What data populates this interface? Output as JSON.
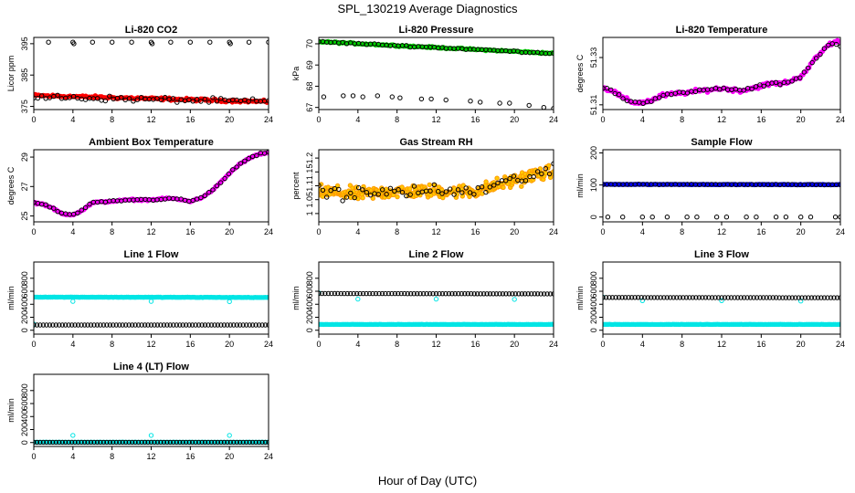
{
  "figure": {
    "title": "SPL_130219  Average Diagnostics",
    "xlabel": "Hour of Day (UTC)"
  },
  "chart_data": [
    {
      "type": "scatter",
      "title": "Li-820 CO2",
      "ylabel": "Licor ppm",
      "xlim": [
        0,
        24
      ],
      "ylim": [
        374,
        397
      ],
      "xticks": [
        0,
        4,
        8,
        12,
        16,
        20,
        24
      ],
      "yticks": [
        375,
        385,
        395
      ],
      "series": [
        {
          "name": "instrument",
          "color": "#ff0000",
          "fill": "#ff0000",
          "generator": "linear",
          "from": 378.5,
          "to": 376.5,
          "noise": 0.6,
          "n": 150
        },
        {
          "name": "line-avg-low",
          "color": "#000000",
          "generator": "linear",
          "from": 378,
          "to": 376.5,
          "noise": 1.2,
          "n": 60
        },
        {
          "name": "line-avg-high",
          "color": "#000000",
          "x": [
            1.5,
            4,
            4.1,
            6,
            8,
            10,
            12,
            12.1,
            14,
            16,
            18,
            20,
            20.1,
            22,
            24
          ],
          "y": [
            395.5,
            395.5,
            395,
            395.5,
            395.5,
            395.5,
            395.5,
            395,
            395.5,
            395.5,
            395.5,
            395.5,
            395,
            395.5,
            395.5
          ]
        }
      ]
    },
    {
      "type": "scatter",
      "title": "Li-820 Pressure",
      "ylabel": "kPa",
      "xlim": [
        0,
        24
      ],
      "ylim": [
        66.9,
        70.3
      ],
      "xticks": [
        0,
        4,
        8,
        12,
        16,
        20,
        24
      ],
      "yticks": [
        67,
        68,
        69,
        70
      ],
      "series": [
        {
          "name": "instrument",
          "color": "#00cc00",
          "fill": "#00cc00",
          "generator": "linear",
          "from": 70.1,
          "to": 69.55,
          "noise": 0.05,
          "n": 150
        },
        {
          "name": "line-avg-high",
          "color": "#000000",
          "generator": "linear",
          "from": 70.1,
          "to": 69.55,
          "noise": 0.05,
          "n": 60
        },
        {
          "name": "line-avg-low",
          "color": "#000000",
          "x": [
            0.5,
            2.5,
            3.5,
            4.5,
            6,
            7.5,
            8.3,
            10.5,
            11.5,
            13,
            15.5,
            16.5,
            18.5,
            19.5,
            21.5,
            23,
            24
          ],
          "y": [
            67.5,
            67.55,
            67.55,
            67.5,
            67.55,
            67.5,
            67.45,
            67.4,
            67.4,
            67.35,
            67.3,
            67.25,
            67.2,
            67.2,
            67.1,
            67.0,
            66.95
          ]
        }
      ]
    },
    {
      "type": "scatter",
      "title": "Li-820 Temperature",
      "ylabel": "degrees C",
      "xlim": [
        0,
        24
      ],
      "ylim": [
        51.308,
        51.3385
      ],
      "xticks": [
        0,
        4,
        8,
        12,
        16,
        20,
        24
      ],
      "yticks": [
        51.31,
        51.33
      ],
      "series": [
        {
          "name": "instrument",
          "color": "#ff00ff",
          "fill": "#ff00ff",
          "x": [
            0,
            1,
            2,
            3,
            4,
            5,
            6,
            8,
            10,
            12,
            14,
            16,
            17,
            18,
            19,
            20,
            21,
            22,
            23,
            24
          ],
          "y": [
            51.317,
            51.316,
            51.313,
            51.311,
            51.311,
            51.312,
            51.314,
            51.315,
            51.316,
            51.317,
            51.316,
            51.318,
            51.319,
            51.319,
            51.32,
            51.322,
            51.327,
            51.332,
            51.336,
            51.337
          ],
          "noise": 0.0012,
          "n": 160
        },
        {
          "name": "line-avg",
          "color": "#000000",
          "x": [
            0,
            1,
            2,
            3,
            4,
            5,
            6,
            8,
            10,
            12,
            14,
            16,
            17,
            18,
            19,
            20,
            21,
            22,
            23,
            24
          ],
          "y": [
            51.317,
            51.316,
            51.313,
            51.311,
            51.311,
            51.312,
            51.314,
            51.315,
            51.316,
            51.317,
            51.316,
            51.318,
            51.319,
            51.319,
            51.32,
            51.322,
            51.327,
            51.332,
            51.336,
            51.335
          ],
          "noise": 0.0008,
          "n": 60
        }
      ]
    },
    {
      "type": "scatter",
      "title": "Ambient Box Temperature",
      "ylabel": "degrees C",
      "xlim": [
        0,
        24
      ],
      "ylim": [
        24.6,
        29.5
      ],
      "xticks": [
        0,
        4,
        8,
        12,
        16,
        20,
        24
      ],
      "yticks": [
        25,
        27,
        29
      ],
      "series": [
        {
          "name": "instrument",
          "color": "#ff00ff",
          "fill": "#ff00ff",
          "x": [
            0,
            1,
            2,
            3,
            4,
            5,
            6,
            8,
            10,
            12,
            14,
            16,
            17,
            18,
            19,
            20,
            21,
            22,
            23,
            24
          ],
          "y": [
            25.9,
            25.8,
            25.5,
            25.1,
            25.1,
            25.4,
            25.9,
            26.0,
            26.1,
            26.1,
            26.2,
            26.0,
            26.2,
            26.6,
            27.2,
            27.9,
            28.5,
            28.9,
            29.2,
            29.3
          ],
          "noise": 0.08,
          "n": 160
        },
        {
          "name": "line-avg",
          "color": "#000000",
          "x": [
            0,
            1,
            2,
            3,
            4,
            5,
            6,
            8,
            10,
            12,
            14,
            16,
            17,
            18,
            19,
            20,
            21,
            22,
            23,
            24
          ],
          "y": [
            25.9,
            25.8,
            25.5,
            25.1,
            25.1,
            25.4,
            25.9,
            26.0,
            26.1,
            26.1,
            26.2,
            26.0,
            26.2,
            26.6,
            27.2,
            27.9,
            28.5,
            28.9,
            29.2,
            29.3
          ],
          "noise": 0.08,
          "n": 60
        }
      ]
    },
    {
      "type": "scatter",
      "title": "Gas Stream RH",
      "ylabel": "percent",
      "xlim": [
        0,
        24
      ],
      "ylim": [
        0.97,
        1.23
      ],
      "xticks": [
        0,
        4,
        8,
        12,
        16,
        20,
        24
      ],
      "yticks": [
        1.0,
        1.05,
        1.1,
        1.15,
        1.2
      ],
      "series": [
        {
          "name": "instrument",
          "color": "#ff9900",
          "fill": "#ffcc00",
          "x": [
            0,
            4,
            8,
            12,
            16,
            20,
            22,
            24
          ],
          "y": [
            1.08,
            1.07,
            1.08,
            1.08,
            1.08,
            1.12,
            1.14,
            1.15
          ],
          "noise": 0.035,
          "n": 300
        },
        {
          "name": "line-avg",
          "color": "#000000",
          "x": [
            0,
            4,
            8,
            12,
            16,
            20,
            22,
            24
          ],
          "y": [
            1.08,
            1.07,
            1.08,
            1.08,
            1.08,
            1.12,
            1.14,
            1.15
          ],
          "noise": 0.035,
          "n": 60
        }
      ]
    },
    {
      "type": "scatter",
      "title": "Sample Flow",
      "ylabel": "ml/min",
      "xlim": [
        0,
        24
      ],
      "ylim": [
        -15,
        210
      ],
      "xticks": [
        0,
        4,
        8,
        12,
        16,
        20,
        24
      ],
      "yticks": [
        0,
        100,
        200
      ],
      "series": [
        {
          "name": "instrument",
          "color": "#0000ff",
          "fill": "#0000ff",
          "generator": "linear",
          "from": 102,
          "to": 101,
          "noise": 1.0,
          "n": 150
        },
        {
          "name": "line-avg-high",
          "color": "#000000",
          "generator": "linear",
          "from": 102,
          "to": 101,
          "noise": 1.0,
          "n": 60
        },
        {
          "name": "line-avg-zero",
          "color": "#000000",
          "x": [
            0.5,
            2,
            4,
            5,
            6.5,
            8.5,
            9.5,
            11.5,
            12.5,
            14.5,
            15.5,
            17.5,
            18.5,
            20,
            21,
            23.5,
            24
          ],
          "y": [
            0,
            0,
            0,
            0,
            0,
            0,
            0,
            0,
            0,
            0,
            0,
            0,
            0,
            0,
            0,
            0,
            0
          ]
        }
      ]
    },
    {
      "type": "scatter",
      "title": "Line 1 Flow",
      "ylabel": "ml/min",
      "xlim": [
        0,
        24
      ],
      "ylim": [
        -60,
        1050
      ],
      "xticks": [
        0,
        4,
        8,
        12,
        16,
        20,
        24
      ],
      "yticks": [
        0,
        200,
        400,
        600,
        800
      ],
      "series": [
        {
          "name": "line-flow-high",
          "color": "#00e5e5",
          "fill": "#00e5e5",
          "generator": "linear",
          "from": 510,
          "to": 505,
          "noise": 4,
          "n": 140
        },
        {
          "name": "line-flow-dips",
          "color": "#00e5e5",
          "x": [
            4,
            12,
            20
          ],
          "y": [
            445,
            445,
            440
          ]
        },
        {
          "name": "line-flow-low",
          "color": "#00e5e5",
          "x": [
            0
          ],
          "y": [
            95
          ]
        },
        {
          "name": "line-avg",
          "color": "#000000",
          "generator": "linear",
          "from": 80,
          "to": 80,
          "noise": 0,
          "n": 75
        }
      ]
    },
    {
      "type": "scatter",
      "title": "Line 2 Flow",
      "ylabel": "ml/min",
      "xlim": [
        0,
        24
      ],
      "ylim": [
        -60,
        1050
      ],
      "xticks": [
        0,
        4,
        8,
        12,
        16,
        20,
        24
      ],
      "yticks": [
        0,
        200,
        400,
        600,
        800
      ],
      "series": [
        {
          "name": "line-flow-low",
          "color": "#00e5e5",
          "fill": "#00e5e5",
          "generator": "linear",
          "from": 90,
          "to": 90,
          "noise": 2,
          "n": 140
        },
        {
          "name": "line-flow-high",
          "color": "#00e5e5",
          "x": [
            0,
            4,
            12,
            20
          ],
          "y": [
            575,
            480,
            480,
            475
          ]
        },
        {
          "name": "line-avg",
          "color": "#000000",
          "generator": "linear",
          "from": 565,
          "to": 560,
          "noise": 0,
          "n": 75
        }
      ]
    },
    {
      "type": "scatter",
      "title": "Line 3 Flow",
      "ylabel": "ml/min",
      "xlim": [
        0,
        24
      ],
      "ylim": [
        -60,
        1050
      ],
      "xticks": [
        0,
        4,
        8,
        12,
        16,
        20,
        24
      ],
      "yticks": [
        0,
        200,
        400,
        600,
        800
      ],
      "series": [
        {
          "name": "line-flow-low",
          "color": "#00e5e5",
          "fill": "#00e5e5",
          "generator": "linear",
          "from": 90,
          "to": 90,
          "noise": 2,
          "n": 140
        },
        {
          "name": "line-flow-high",
          "color": "#00e5e5",
          "x": [
            0,
            4,
            12,
            20
          ],
          "y": [
            510,
            455,
            455,
            450
          ]
        },
        {
          "name": "line-avg",
          "color": "#000000",
          "generator": "linear",
          "from": 505,
          "to": 500,
          "noise": 0,
          "n": 75
        }
      ]
    },
    {
      "type": "scatter",
      "title": "Line 4 (LT) Flow",
      "ylabel": "ml/min",
      "xlim": [
        0,
        24
      ],
      "ylim": [
        -60,
        1050
      ],
      "xticks": [
        0,
        4,
        8,
        12,
        16,
        20,
        24
      ],
      "yticks": [
        0,
        200,
        400,
        600,
        800
      ],
      "series": [
        {
          "name": "line-flow-low",
          "color": "#00e5e5",
          "fill": "#00e5e5",
          "generator": "linear",
          "from": 5,
          "to": 5,
          "noise": 1,
          "n": 140
        },
        {
          "name": "line-flow-spikes",
          "color": "#00e5e5",
          "x": [
            4,
            12,
            20
          ],
          "y": [
            110,
            110,
            110
          ]
        },
        {
          "name": "line-avg",
          "color": "#000000",
          "generator": "linear",
          "from": 5,
          "to": 5,
          "noise": 0,
          "n": 75
        }
      ]
    }
  ]
}
